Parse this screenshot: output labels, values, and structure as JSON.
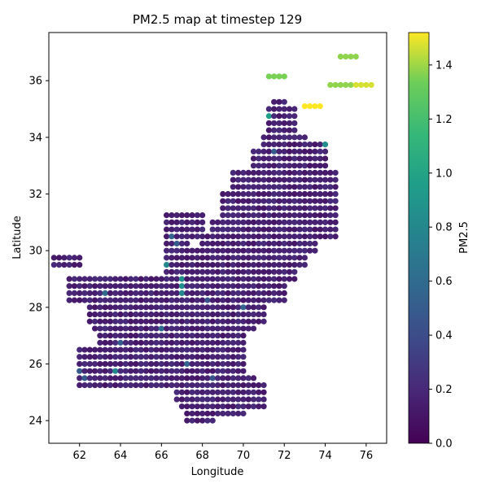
{
  "chart_data": {
    "type": "scatter",
    "title": "PM2.5 map at timestep 129",
    "xlabel": "Longitude",
    "ylabel": "Latitude",
    "xlim": [
      60.5,
      77.0
    ],
    "ylim": [
      23.2,
      37.7
    ],
    "xticks": [
      62,
      64,
      66,
      68,
      70,
      72,
      74,
      76
    ],
    "yticks": [
      24,
      26,
      28,
      30,
      32,
      34,
      36
    ],
    "grid": false,
    "colorbar": {
      "label": "PM2.5",
      "colormap": "viridis",
      "range": [
        0.0,
        1.52
      ],
      "ticks": [
        0.0,
        0.2,
        0.4,
        0.6,
        0.8,
        1.0,
        1.2,
        1.4
      ]
    },
    "grid_step_deg": 0.25,
    "base_value": 0.1,
    "regions": [
      {
        "lat": [
          35.0,
          35.2
        ],
        "lon": [
          71.5,
          72.0
        ]
      },
      {
        "lat": [
          34.0,
          34.9
        ],
        "lon": [
          71.25,
          72.5
        ]
      },
      {
        "lat": [
          33.5,
          34.0
        ],
        "lon": [
          71.0,
          73.0
        ]
      },
      {
        "lat": [
          33.5,
          33.8
        ],
        "lon": [
          73.0,
          74.0
        ]
      },
      {
        "lat": [
          32.75,
          33.5
        ],
        "lon": [
          70.5,
          74.0
        ]
      },
      {
        "lat": [
          32.0,
          32.75
        ],
        "lon": [
          69.5,
          74.5
        ]
      },
      {
        "lat": [
          31.0,
          32.0
        ],
        "lon": [
          69.0,
          74.5
        ]
      },
      {
        "lat": [
          30.5,
          31.0
        ],
        "lon": [
          68.5,
          74.5
        ]
      },
      {
        "lat": [
          30.0,
          30.5
        ],
        "lon": [
          68.0,
          73.5
        ]
      },
      {
        "lat": [
          29.5,
          30.0
        ],
        "lon": [
          67.0,
          73.0
        ]
      },
      {
        "lat": [
          29.0,
          29.5
        ],
        "lon": [
          66.25,
          72.5
        ]
      },
      {
        "lat": [
          28.25,
          29.0
        ],
        "lon": [
          61.5,
          72.0
        ]
      },
      {
        "lat": [
          27.5,
          28.25
        ],
        "lon": [
          62.5,
          71.0
        ]
      },
      {
        "lat": [
          27.25,
          27.5
        ],
        "lon": [
          62.75,
          70.5
        ]
      },
      {
        "lat": [
          26.5,
          27.25
        ],
        "lon": [
          63.0,
          70.0
        ]
      },
      {
        "lat": [
          25.5,
          26.5
        ],
        "lon": [
          62.0,
          70.0
        ]
      },
      {
        "lat": [
          25.25,
          25.5
        ],
        "lon": [
          62.0,
          70.5
        ]
      },
      {
        "lat": [
          24.75,
          25.25
        ],
        "lon": [
          66.75,
          71.0
        ]
      },
      {
        "lat": [
          24.5,
          24.75
        ],
        "lon": [
          67.0,
          71.0
        ]
      },
      {
        "lat": [
          24.25,
          24.5
        ],
        "lon": [
          67.5,
          70.0
        ]
      },
      {
        "lat": [
          24.0,
          24.25
        ],
        "lon": [
          67.25,
          68.5
        ]
      },
      {
        "lat": [
          23.9,
          23.9
        ],
        "lon": [
          68.0,
          68.0
        ]
      },
      {
        "lat": [
          29.25,
          30.25
        ],
        "lon": [
          66.25,
          67.25
        ]
      },
      {
        "lat": [
          30.5,
          31.25
        ],
        "lon": [
          66.25,
          68.0
        ]
      },
      {
        "lat": [
          29.5,
          29.75
        ],
        "lon": [
          60.75,
          62.0
        ]
      }
    ],
    "highlights": [
      {
        "lat": 29.6,
        "lon": 65.85,
        "value": 0.85
      },
      {
        "lat": 29.6,
        "lon": 66.1,
        "value": 0.9
      },
      {
        "lat": 29.6,
        "lon": 66.35,
        "value": 0.8
      },
      {
        "lat": 28.9,
        "lon": 67.0,
        "value": 0.85
      },
      {
        "lat": 28.75,
        "lon": 67.0,
        "value": 0.85
      },
      {
        "lat": 28.6,
        "lon": 67.0,
        "value": 0.8
      },
      {
        "lat": 34.85,
        "lon": 71.25,
        "value": 0.95
      },
      {
        "lat": 33.75,
        "lon": 74.0,
        "value": 0.85
      },
      {
        "lat": 25.75,
        "lon": 63.75,
        "value": 0.8
      },
      {
        "lat": 28.5,
        "lon": 63.25,
        "value": 0.6
      },
      {
        "lat": 27.25,
        "lon": 66.0,
        "value": 0.6
      },
      {
        "lat": 26.0,
        "lon": 67.25,
        "value": 0.55
      },
      {
        "lat": 28.0,
        "lon": 70.0,
        "value": 0.55
      },
      {
        "lat": 30.25,
        "lon": 66.75,
        "value": 0.5
      },
      {
        "lat": 30.5,
        "lon": 66.5,
        "value": 0.55
      },
      {
        "lat": 26.75,
        "lon": 64.0,
        "value": 0.5
      },
      {
        "lat": 25.5,
        "lon": 68.5,
        "value": 0.45
      },
      {
        "lat": 33.5,
        "lon": 71.5,
        "value": 0.5
      },
      {
        "lat": 28.25,
        "lon": 68.25,
        "value": 0.45
      },
      {
        "lat": 25.75,
        "lon": 62.0,
        "value": 0.5
      },
      {
        "lat": 25.5,
        "lon": 62.25,
        "value": 0.5
      }
    ],
    "outliers": [
      {
        "lat": 36.15,
        "lon": [
          71.25,
          71.5,
          71.75,
          72.0
        ],
        "value": 1.35
      },
      {
        "lat": 36.85,
        "lon": [
          74.75,
          75.0,
          75.25,
          75.5
        ],
        "value": 1.38
      },
      {
        "lat": 35.85,
        "lon": [
          74.25,
          74.5,
          74.75,
          75.0,
          75.25
        ],
        "value": 1.38
      },
      {
        "lat": 35.85,
        "lon": [
          75.5,
          75.75,
          76.0,
          76.25
        ],
        "value": 1.47
      },
      {
        "lat": 35.1,
        "lon": [
          73.0,
          73.25,
          73.5,
          73.75
        ],
        "value": 1.52
      }
    ]
  }
}
